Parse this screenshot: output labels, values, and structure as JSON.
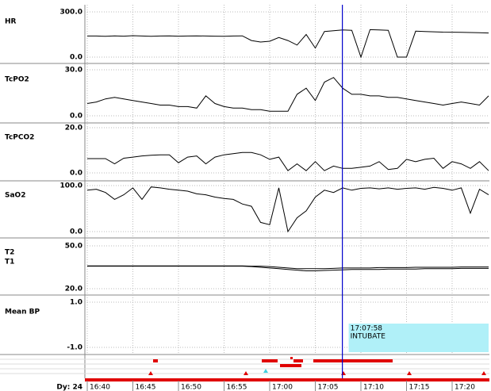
{
  "chart_data": [
    {
      "type": "line",
      "title": "HR",
      "color": "#000000",
      "xlim": [
        "16:40",
        "17:24"
      ],
      "ylim": [
        0,
        300
      ],
      "yticks": [
        {
          "value": 0,
          "label": "0.0"
        },
        {
          "value": 300,
          "label": "300.0"
        }
      ],
      "x": [
        "16:40",
        "16:41",
        "16:42",
        "16:43",
        "16:44",
        "16:45",
        "16:46",
        "16:47",
        "16:48",
        "16:49",
        "16:50",
        "16:51",
        "16:52",
        "16:53",
        "16:54",
        "16:55",
        "16:56",
        "16:57",
        "16:58",
        "16:59",
        "17:00",
        "17:01",
        "17:02",
        "17:03",
        "17:04",
        "17:05",
        "17:06",
        "17:07",
        "17:08",
        "17:09",
        "17:10",
        "17:11",
        "17:12",
        "17:13",
        "17:14",
        "17:15",
        "17:16",
        "17:17",
        "17:18",
        "17:19",
        "17:20",
        "17:21",
        "17:22",
        "17:23",
        "17:24"
      ],
      "values": [
        140,
        140,
        138,
        141,
        139,
        142,
        140,
        138,
        140,
        141,
        139,
        140,
        141,
        140,
        139,
        138,
        140,
        141,
        110,
        100,
        105,
        130,
        110,
        80,
        150,
        60,
        170,
        175,
        180,
        178,
        0,
        182,
        180,
        178,
        0,
        0,
        172,
        170,
        168,
        166,
        165,
        164,
        163,
        162,
        160
      ]
    },
    {
      "type": "line",
      "title": "TcPO2",
      "color": "#000000",
      "xlim": [
        "16:40",
        "17:24"
      ],
      "ylim": [
        0,
        30
      ],
      "yticks": [
        {
          "value": 0,
          "label": "0.0"
        },
        {
          "value": 30,
          "label": "30.0"
        }
      ],
      "x": [
        "16:40",
        "16:41",
        "16:42",
        "16:43",
        "16:44",
        "16:45",
        "16:46",
        "16:47",
        "16:48",
        "16:49",
        "16:50",
        "16:51",
        "16:52",
        "16:53",
        "16:54",
        "16:55",
        "16:56",
        "16:57",
        "16:58",
        "16:59",
        "17:00",
        "17:01",
        "17:02",
        "17:03",
        "17:04",
        "17:05",
        "17:06",
        "17:07",
        "17:08",
        "17:09",
        "17:10",
        "17:11",
        "17:12",
        "17:13",
        "17:14",
        "17:15",
        "17:16",
        "17:17",
        "17:18",
        "17:19",
        "17:20",
        "17:21",
        "17:22",
        "17:23",
        "17:24"
      ],
      "values": [
        8,
        9,
        11,
        12,
        11,
        10,
        9,
        8,
        7,
        7,
        6,
        6,
        5,
        13,
        8,
        6,
        5,
        5,
        4,
        4,
        3,
        3,
        3,
        14,
        18,
        10,
        22,
        25,
        18,
        14,
        14,
        13,
        13,
        12,
        12,
        11,
        10,
        9,
        8,
        7,
        8,
        9,
        8,
        7,
        13
      ]
    },
    {
      "type": "line",
      "title": "TcPCO2",
      "color": "#000000",
      "xlim": [
        "16:40",
        "17:24"
      ],
      "ylim": [
        0,
        20
      ],
      "yticks": [
        {
          "value": 0,
          "label": "0.0"
        },
        {
          "value": 20,
          "label": "20.0"
        }
      ],
      "x": [
        "16:40",
        "16:41",
        "16:42",
        "16:43",
        "16:44",
        "16:45",
        "16:46",
        "16:47",
        "16:48",
        "16:49",
        "16:50",
        "16:51",
        "16:52",
        "16:53",
        "16:54",
        "16:55",
        "16:56",
        "16:57",
        "16:58",
        "16:59",
        "17:00",
        "17:01",
        "17:02",
        "17:03",
        "17:04",
        "17:05",
        "17:06",
        "17:07",
        "17:08",
        "17:09",
        "17:10",
        "17:11",
        "17:12",
        "17:13",
        "17:14",
        "17:15",
        "17:16",
        "17:17",
        "17:18",
        "17:19",
        "17:20",
        "17:21",
        "17:22",
        "17:23",
        "17:24"
      ],
      "values": [
        6.3,
        6.3,
        6.3,
        4,
        6.5,
        7,
        7.5,
        7.8,
        8,
        8,
        4.5,
        7,
        7.5,
        4,
        7,
        8,
        8.5,
        9,
        9,
        8,
        6,
        7,
        1,
        4,
        1,
        5,
        1,
        3,
        2,
        2,
        2.5,
        3,
        5,
        1.5,
        2,
        6,
        5,
        6,
        6.5,
        2,
        5,
        4,
        2,
        5,
        1
      ]
    },
    {
      "type": "line",
      "title": "SaO2",
      "color": "#000000",
      "xlim": [
        "16:40",
        "17:24"
      ],
      "ylim": [
        0,
        100
      ],
      "yticks": [
        {
          "value": 0,
          "label": "0.0"
        },
        {
          "value": 100,
          "label": "100.0"
        }
      ],
      "x": [
        "16:40",
        "16:41",
        "16:42",
        "16:43",
        "16:44",
        "16:45",
        "16:46",
        "16:47",
        "16:48",
        "16:49",
        "16:50",
        "16:51",
        "16:52",
        "16:53",
        "16:54",
        "16:55",
        "16:56",
        "16:57",
        "16:58",
        "16:59",
        "17:00",
        "17:01",
        "17:02",
        "17:03",
        "17:04",
        "17:05",
        "17:06",
        "17:07",
        "17:08",
        "17:09",
        "17:10",
        "17:11",
        "17:12",
        "17:13",
        "17:14",
        "17:15",
        "17:16",
        "17:17",
        "17:18",
        "17:19",
        "17:20",
        "17:21",
        "17:22",
        "17:23",
        "17:24"
      ],
      "values": [
        90,
        92,
        85,
        70,
        80,
        95,
        70,
        97,
        95,
        92,
        90,
        88,
        82,
        80,
        75,
        72,
        70,
        60,
        55,
        20,
        15,
        95,
        0,
        30,
        45,
        75,
        90,
        85,
        95,
        90,
        94,
        95,
        93,
        95,
        92,
        94,
        95,
        92,
        96,
        94,
        90,
        95,
        40,
        92,
        80
      ]
    },
    {
      "type": "line",
      "xlim": [
        "16:40",
        "17:24"
      ],
      "ylim": [
        20,
        50
      ],
      "yticks": [
        {
          "value": 20,
          "label": "20.0"
        },
        {
          "value": 50,
          "label": "50.0"
        }
      ],
      "x": [
        "16:40",
        "16:41",
        "16:42",
        "16:43",
        "16:44",
        "16:45",
        "16:46",
        "16:47",
        "16:48",
        "16:49",
        "16:50",
        "16:51",
        "16:52",
        "16:53",
        "16:54",
        "16:55",
        "16:56",
        "16:57",
        "16:58",
        "16:59",
        "17:00",
        "17:01",
        "17:02",
        "17:03",
        "17:04",
        "17:05",
        "17:06",
        "17:07",
        "17:08",
        "17:09",
        "17:10",
        "17:11",
        "17:12",
        "17:13",
        "17:14",
        "17:15",
        "17:16",
        "17:17",
        "17:18",
        "17:19",
        "17:20",
        "17:21",
        "17:22",
        "17:23",
        "17:24"
      ],
      "series": [
        {
          "name": "T2",
          "color": "#000000",
          "values": [
            36,
            36,
            36,
            36,
            36,
            36,
            36,
            36,
            36,
            36,
            36,
            36,
            36,
            36,
            36,
            36,
            36,
            36,
            35.8,
            35.8,
            35.5,
            35,
            34.5,
            34,
            34,
            34,
            34,
            34.2,
            34.5,
            34.5,
            34.5,
            34.5,
            34.8,
            34.8,
            34.8,
            34.8,
            35,
            35,
            35,
            35,
            35,
            35.2,
            35.2,
            35.2,
            35.2
          ]
        },
        {
          "name": "T1",
          "color": "#000000",
          "values": [
            35.8,
            35.8,
            35.8,
            35.8,
            35.8,
            35.8,
            35.8,
            35.8,
            35.8,
            35.8,
            35.8,
            35.8,
            35.8,
            35.8,
            35.8,
            35.8,
            35.8,
            35.8,
            35.5,
            35,
            34.5,
            34,
            33.5,
            33,
            32.5,
            32.5,
            32.8,
            33,
            33.2,
            33.5,
            33.5,
            33.5,
            33.5,
            33.8,
            33.8,
            33.8,
            33.8,
            34,
            34,
            34,
            34,
            34.2,
            34.2,
            34.2,
            34.2
          ]
        }
      ]
    },
    {
      "type": "line",
      "title": "Mean BP",
      "xlim": [
        "16:40",
        "17:24"
      ],
      "ylim": [
        -1,
        1
      ],
      "yticks": [
        {
          "value": -1,
          "label": "-1.0"
        },
        {
          "value": 1,
          "label": "1.0"
        }
      ],
      "x": [],
      "values": [],
      "annotations": [
        {
          "x": "17:07:58",
          "time": "17:07:58",
          "text": "INTUBATE"
        }
      ]
    }
  ],
  "time_axis": {
    "xlim": [
      "16:40",
      "17:24"
    ],
    "xticks": [
      "16:40",
      "16:45",
      "16:50",
      "16:55",
      "17:00",
      "17:05",
      "17:10",
      "17:15",
      "17:20"
    ],
    "day": "Dy: 24"
  }
}
